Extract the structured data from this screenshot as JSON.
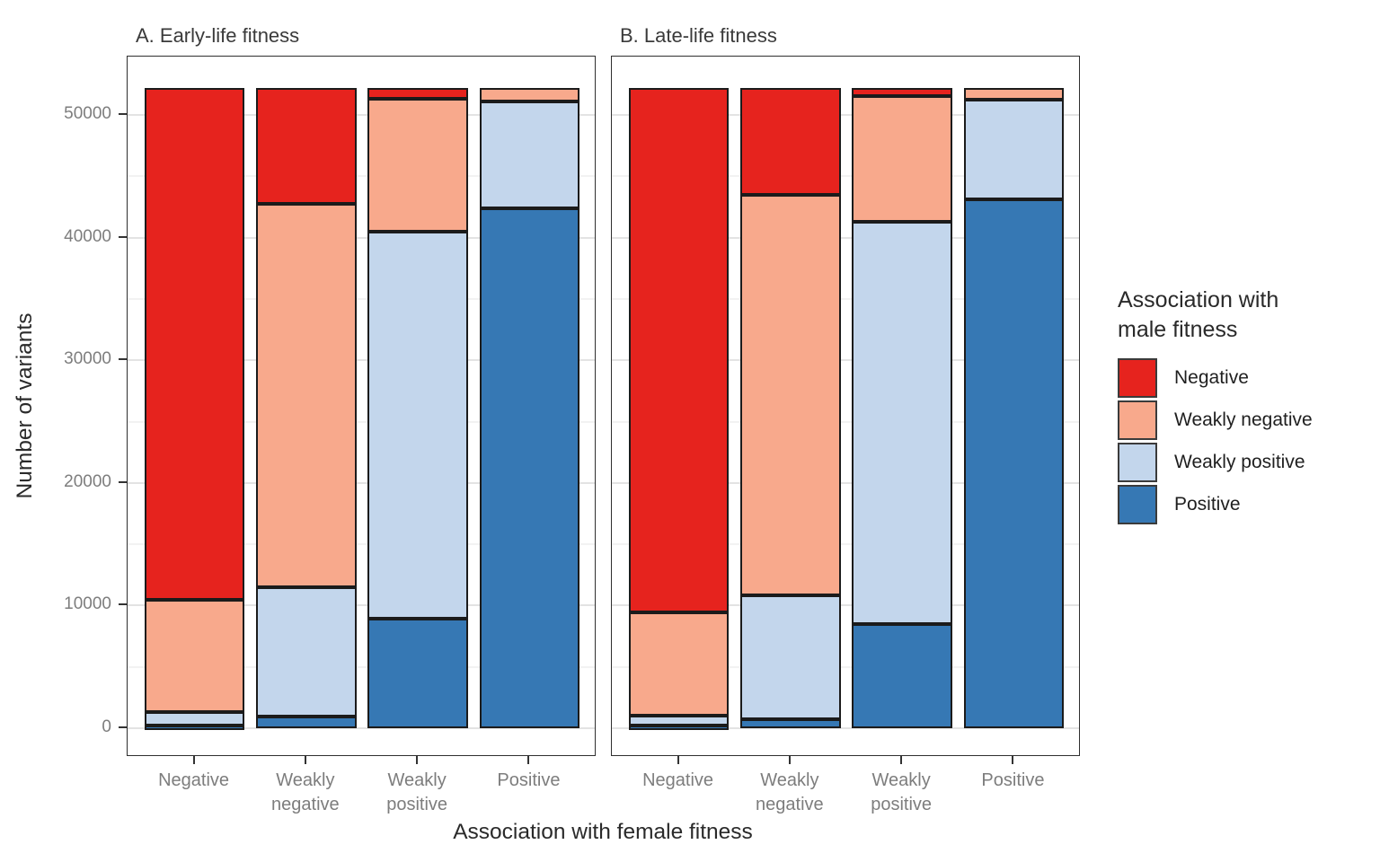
{
  "chart_data": {
    "type": "bar",
    "subtype": "stacked",
    "title": "",
    "xlabel": "Association with female fitness",
    "ylabel": "Number of variants",
    "yticks": [
      0,
      10000,
      20000,
      30000,
      40000,
      50000
    ],
    "ytick_labels": [
      "0",
      "10000",
      "20000",
      "30000",
      "40000",
      "50000"
    ],
    "minor_gridline_step": 5000,
    "ylim": [
      0,
      54800
    ],
    "grid": "on",
    "bar_total_per_category": 52200,
    "categories": [
      "Negative",
      "Weakly negative",
      "Weakly positive",
      "Positive"
    ],
    "category_tick_labels": [
      "Negative",
      "Weakly\nnegative",
      "Weakly\npositive",
      "Positive"
    ],
    "stack_order_bottom_to_top": [
      "Positive",
      "Weakly positive",
      "Weakly negative",
      "Negative"
    ],
    "legend": {
      "title": "Association with\nmale fitness",
      "position": "right",
      "entries": [
        {
          "label": "Negative",
          "color": "#e6231e"
        },
        {
          "label": "Weakly negative",
          "color": "#f8a98c"
        },
        {
          "label": "Weakly positive",
          "color": "#c3d6ec"
        },
        {
          "label": "Positive",
          "color": "#3678b4"
        }
      ]
    },
    "facets": [
      {
        "label": "A. Early-life fitness",
        "series": [
          {
            "name": "Negative",
            "color": "#e6231e",
            "values": [
              41750,
              9450,
              900,
              0
            ]
          },
          {
            "name": "Weakly negative",
            "color": "#f8a98c",
            "values": [
              9100,
              31250,
              10800,
              1100
            ]
          },
          {
            "name": "Weakly positive",
            "color": "#c3d6ec",
            "values": [
              1150,
              10550,
              31600,
              8750
            ]
          },
          {
            "name": "Positive",
            "color": "#3678b4",
            "values": [
              200,
              950,
              8900,
              42350
            ]
          }
        ]
      },
      {
        "label": "B. Late-life fitness",
        "series": [
          {
            "name": "Negative",
            "color": "#e6231e",
            "values": [
              42750,
              8700,
              650,
              0
            ]
          },
          {
            "name": "Weakly negative",
            "color": "#f8a98c",
            "values": [
              8400,
              32700,
              10250,
              950
            ]
          },
          {
            "name": "Weakly positive",
            "color": "#c3d6ec",
            "values": [
              850,
              10100,
              32800,
              8100
            ]
          },
          {
            "name": "Positive",
            "color": "#3678b4",
            "values": [
              200,
              700,
              8500,
              43150
            ]
          }
        ]
      }
    ]
  }
}
